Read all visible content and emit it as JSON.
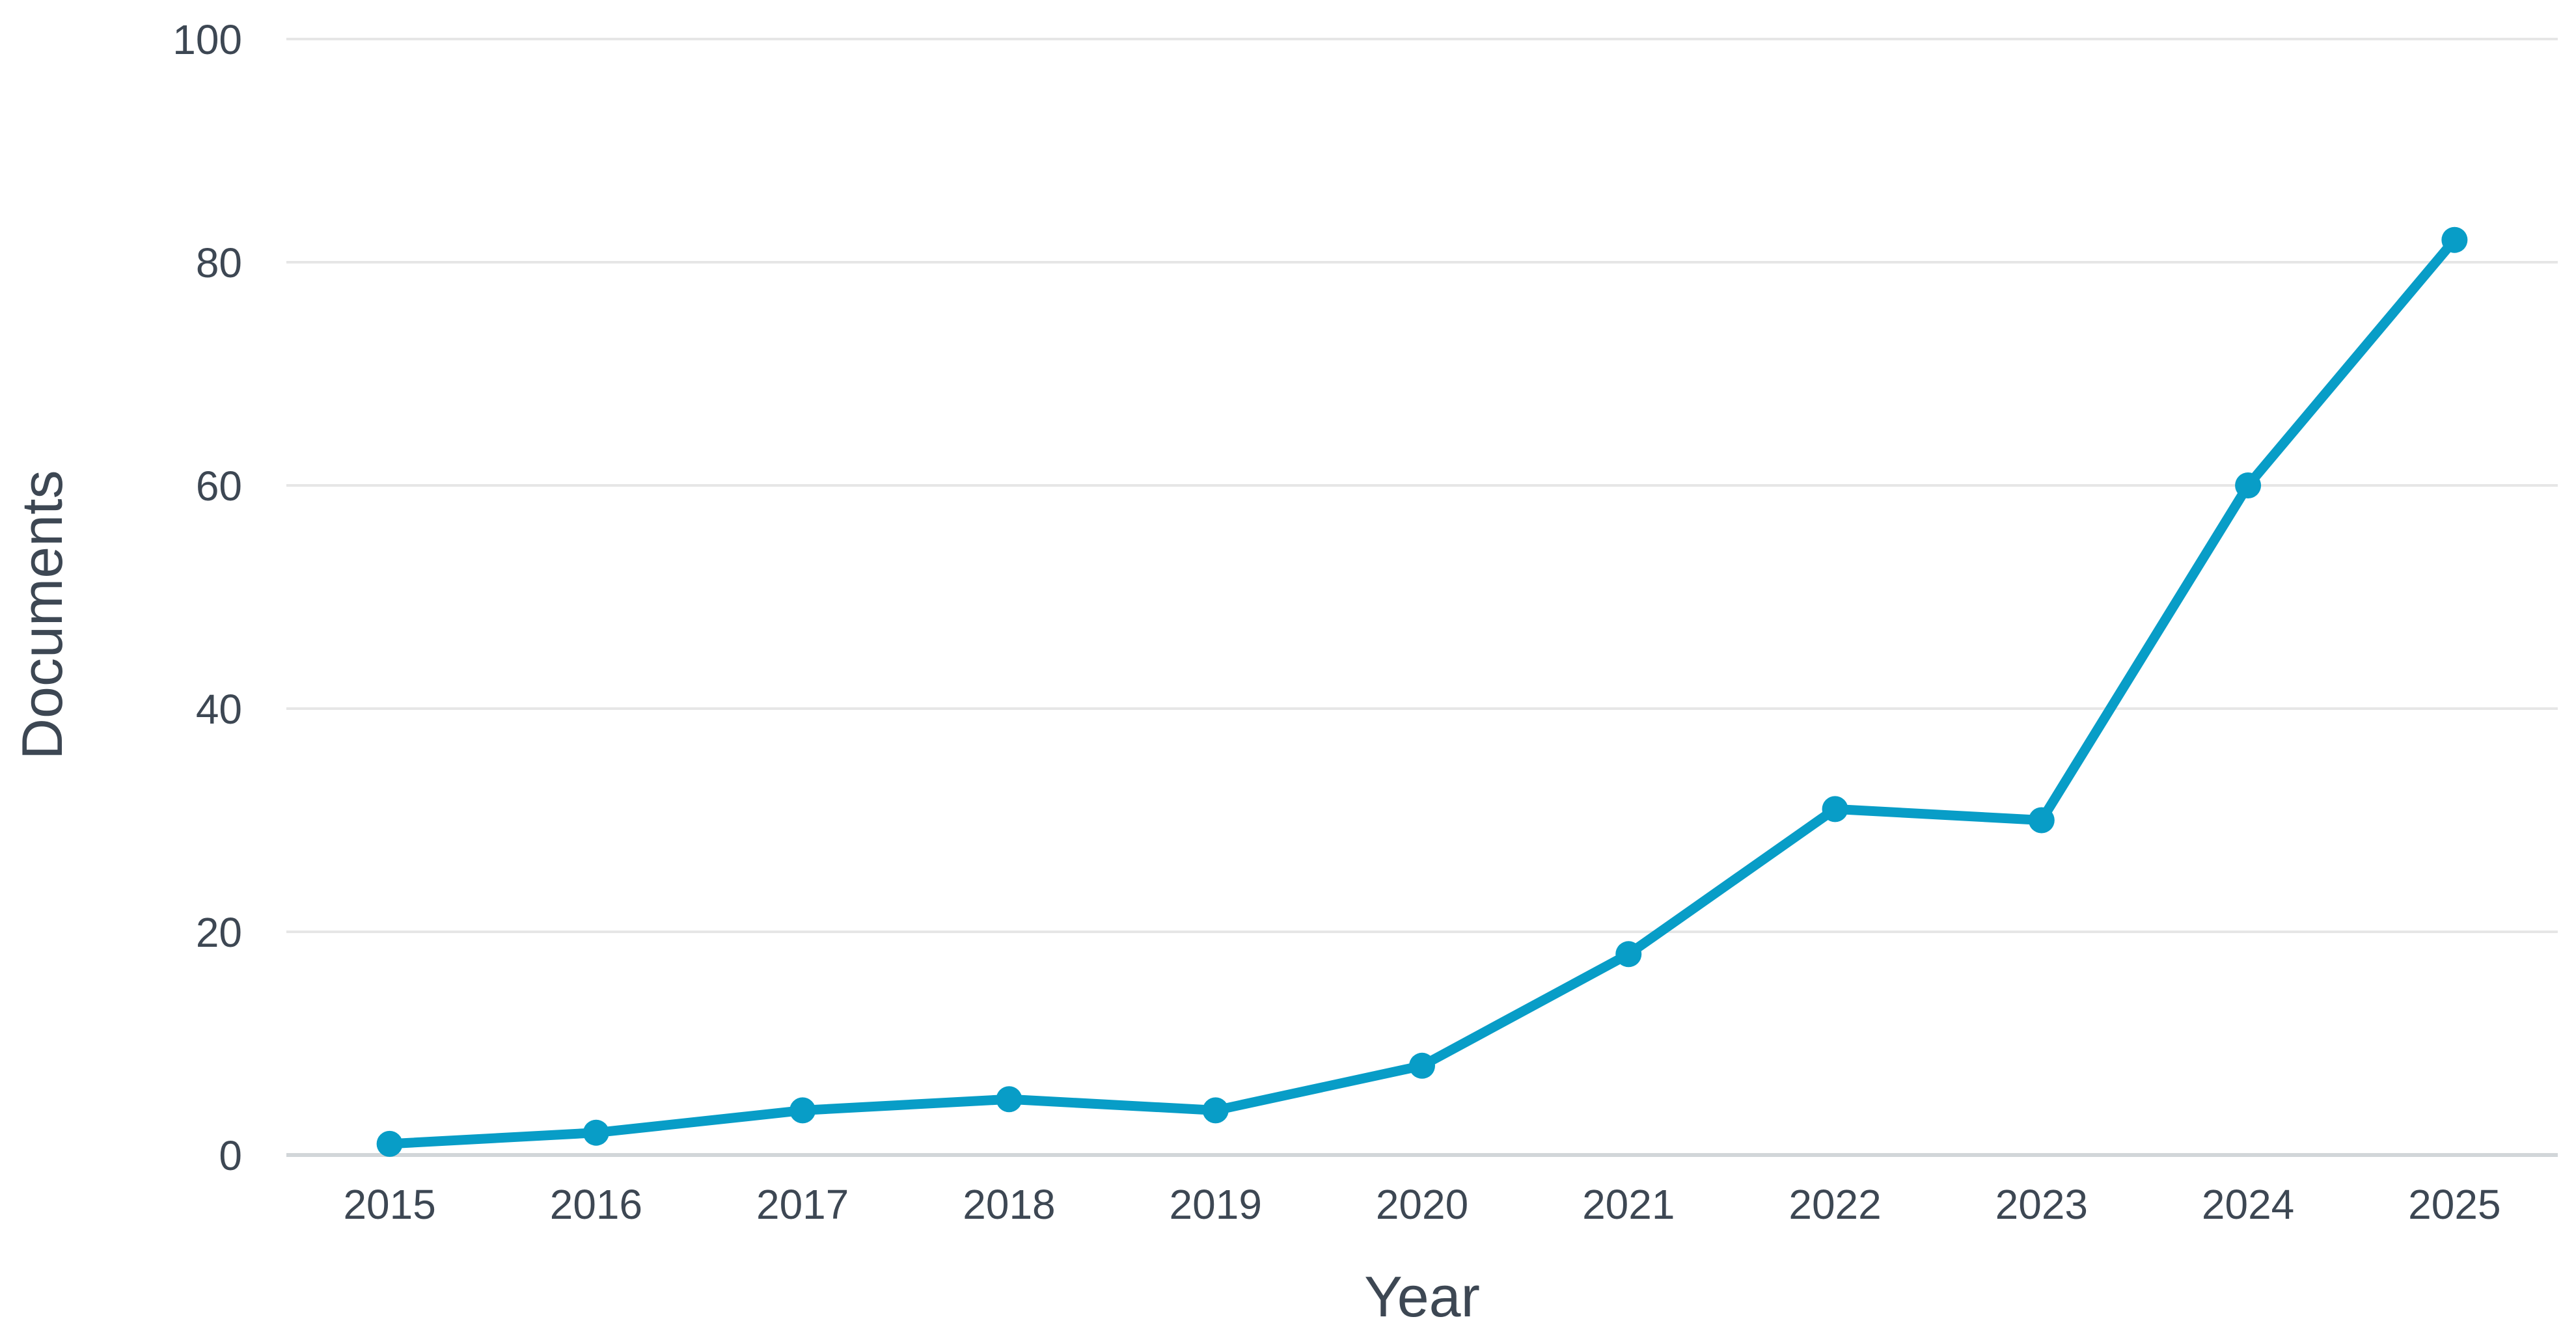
{
  "chart_data": {
    "type": "line",
    "title": "",
    "categories": [
      "2015",
      "2016",
      "2017",
      "2018",
      "2019",
      "2020",
      "2021",
      "2022",
      "2023",
      "2024",
      "2025"
    ],
    "series": [
      {
        "name": "Documents",
        "values": [
          1,
          2,
          4,
          5,
          4,
          8,
          18,
          31,
          30,
          60,
          82
        ]
      }
    ],
    "xlabel": "Year",
    "ylabel": "Documents",
    "ylim": [
      0,
      100
    ],
    "yticks": [
      0,
      20,
      40,
      60,
      80,
      100
    ],
    "grid": true,
    "legend_position": "none",
    "colors": {
      "line": "#089dc7",
      "marker": "#089dc7",
      "gridline": "#e6e6e6",
      "axis_line": "#d2d6d9",
      "text": "#3d4753"
    }
  }
}
